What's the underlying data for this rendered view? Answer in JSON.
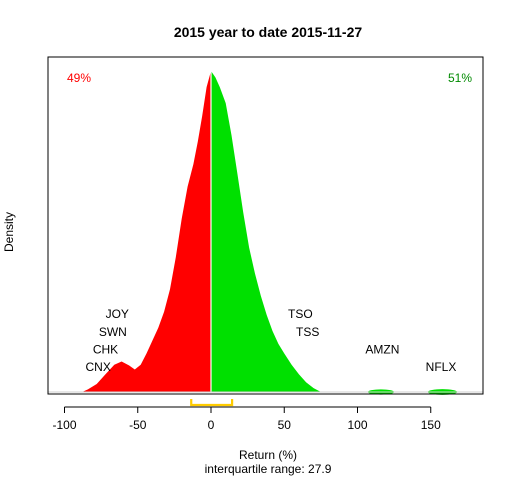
{
  "chart_data": {
    "type": "area",
    "title": "2015  year to date 2015-11-27",
    "xlabel": "Return (%)",
    "ylabel": "Density",
    "subtitle": "interquartile range: 27.9",
    "xlim": [
      -105,
      183
    ],
    "ylim": [
      0,
      1
    ],
    "x_ticks": [
      -100,
      -50,
      0,
      50,
      100,
      150
    ],
    "pct_negative": "49%",
    "pct_positive": "51%",
    "iqr": [
      -13.5,
      14.4
    ],
    "negative_color": "#ff0000",
    "positive_color": "#00e000",
    "bracket_color": "#ffcc00",
    "density_points": [
      [
        -88,
        0.0
      ],
      [
        -84,
        0.008
      ],
      [
        -78,
        0.025
      ],
      [
        -72,
        0.055
      ],
      [
        -66,
        0.085
      ],
      [
        -61,
        0.095
      ],
      [
        -56,
        0.083
      ],
      [
        -52,
        0.07
      ],
      [
        -48,
        0.085
      ],
      [
        -44,
        0.12
      ],
      [
        -40,
        0.16
      ],
      [
        -36,
        0.2
      ],
      [
        -32,
        0.25
      ],
      [
        -28,
        0.32
      ],
      [
        -24,
        0.42
      ],
      [
        -20,
        0.54
      ],
      [
        -16,
        0.64
      ],
      [
        -12,
        0.71
      ],
      [
        -9,
        0.78
      ],
      [
        -6,
        0.86
      ],
      [
        -3,
        0.95
      ],
      [
        0,
        1.0
      ],
      [
        3,
        0.98
      ],
      [
        6,
        0.95
      ],
      [
        10,
        0.9
      ],
      [
        14,
        0.8
      ],
      [
        18,
        0.68
      ],
      [
        22,
        0.56
      ],
      [
        26,
        0.45
      ],
      [
        30,
        0.37
      ],
      [
        34,
        0.3
      ],
      [
        38,
        0.24
      ],
      [
        42,
        0.19
      ],
      [
        46,
        0.15
      ],
      [
        50,
        0.12
      ],
      [
        55,
        0.085
      ],
      [
        60,
        0.055
      ],
      [
        65,
        0.03
      ],
      [
        70,
        0.012
      ],
      [
        75,
        0.0
      ]
    ],
    "bumps": [
      {
        "center": 116,
        "half_width": 9,
        "height": 0.008
      },
      {
        "center": 158,
        "half_width": 10,
        "height": 0.009
      }
    ],
    "labels": [
      {
        "text": "JOY",
        "x": -64,
        "y": 0.23
      },
      {
        "text": "SWN",
        "x": -67,
        "y": 0.175
      },
      {
        "text": "CHK",
        "x": -72,
        "y": 0.12
      },
      {
        "text": "CNX",
        "x": -77,
        "y": 0.065
      },
      {
        "text": "TSO",
        "x": 61,
        "y": 0.23
      },
      {
        "text": "TSS",
        "x": 66,
        "y": 0.175
      },
      {
        "text": "AMZN",
        "x": 117,
        "y": 0.12
      },
      {
        "text": "NFLX",
        "x": 157,
        "y": 0.065
      }
    ]
  }
}
